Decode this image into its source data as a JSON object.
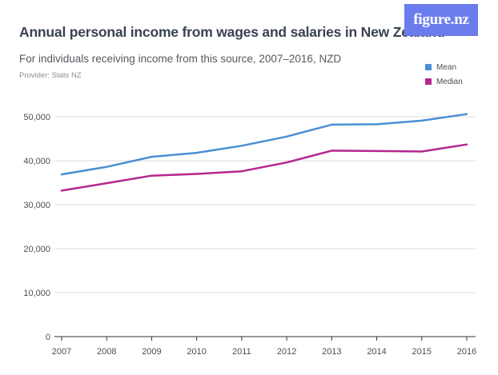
{
  "title": "Annual personal income from wages and salaries in New Zealand",
  "subtitle": "For individuals receiving income from this source, 2007–2016, NZD",
  "provider": "Provider: Stats NZ",
  "logo_text": "figure.nz",
  "colors": {
    "mean": "#4a8fd4",
    "median": "#b5268e",
    "grid": "#dcdcdc",
    "axis": "#333333",
    "logo_bg": "#6b7ded"
  },
  "chart_data": {
    "type": "line",
    "x": [
      2007,
      2008,
      2009,
      2010,
      2011,
      2012,
      2013,
      2014,
      2015,
      2016
    ],
    "x_tick_labels": [
      "2007",
      "2008",
      "2009",
      "2010",
      "2011",
      "2012",
      "2013",
      "2014",
      "2015",
      "2016"
    ],
    "y_ticks": [
      0,
      10000,
      20000,
      30000,
      40000,
      50000
    ],
    "y_tick_labels": [
      "0",
      "10,000",
      "20,000",
      "30,000",
      "40,000",
      "50,000"
    ],
    "ylim": [
      0,
      52000
    ],
    "grid": true,
    "legend_position": "top-right",
    "series": [
      {
        "name": "Mean",
        "values": [
          36900,
          38600,
          40900,
          41800,
          43400,
          45500,
          48200,
          48300,
          49100,
          50600
        ]
      },
      {
        "name": "Median",
        "values": [
          33200,
          34900,
          36600,
          37000,
          37600,
          39600,
          42300,
          42200,
          42100,
          43700
        ]
      }
    ]
  }
}
